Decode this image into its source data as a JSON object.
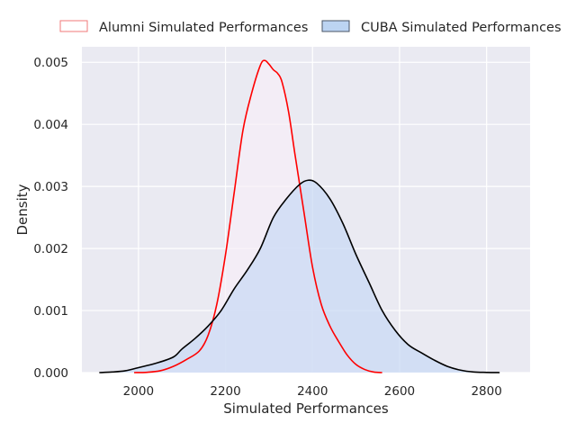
{
  "chart_data": {
    "type": "area",
    "xlabel": "Simulated Performances",
    "ylabel": "Density",
    "xlim": [
      1870,
      2900
    ],
    "ylim": [
      0,
      0.00525
    ],
    "xticks": [
      2000,
      2200,
      2400,
      2600,
      2800
    ],
    "yticks": [
      0.0,
      0.001,
      0.002,
      0.003,
      0.004,
      0.005
    ],
    "xtick_labels": [
      "2000",
      "2200",
      "2400",
      "2600",
      "2800"
    ],
    "ytick_labels": [
      "0.000",
      "0.001",
      "0.002",
      "0.003",
      "0.004",
      "0.005"
    ],
    "grid": true,
    "legend_position": "top-center",
    "series": [
      {
        "name": "Alumni Simulated Performances",
        "line_color": "#ff0000",
        "fill_color": "#f6eef6",
        "legend_edge": "#f07a7a",
        "legend_face": "#ffffff",
        "points": [
          [
            1990,
            0.0
          ],
          [
            2020,
            5e-06
          ],
          [
            2050,
            3e-05
          ],
          [
            2080,
            0.0001
          ],
          [
            2110,
            0.00021
          ],
          [
            2140,
            0.00035
          ],
          [
            2160,
            0.0006
          ],
          [
            2180,
            0.0011
          ],
          [
            2200,
            0.0019
          ],
          [
            2220,
            0.0029
          ],
          [
            2240,
            0.0039
          ],
          [
            2260,
            0.0045
          ],
          [
            2280,
            0.00495
          ],
          [
            2290,
            0.00503
          ],
          [
            2300,
            0.00497
          ],
          [
            2310,
            0.00488
          ],
          [
            2320,
            0.00482
          ],
          [
            2330,
            0.00468
          ],
          [
            2345,
            0.0042
          ],
          [
            2360,
            0.0035
          ],
          [
            2380,
            0.0026
          ],
          [
            2400,
            0.0017
          ],
          [
            2420,
            0.0011
          ],
          [
            2440,
            0.00075
          ],
          [
            2460,
            0.0005
          ],
          [
            2480,
            0.00028
          ],
          [
            2500,
            0.00013
          ],
          [
            2520,
            5e-05
          ],
          [
            2540,
            1e-05
          ],
          [
            2560,
            0.0
          ]
        ]
      },
      {
        "name": "CUBA Simulated Performances",
        "line_color": "#000000",
        "fill_color": "#c9daf4",
        "legend_edge": "#4a5566",
        "legend_face": "#bcd4f2",
        "points": [
          [
            1910,
            0.0
          ],
          [
            1940,
            1e-05
          ],
          [
            1970,
            3e-05
          ],
          [
            2000,
            8e-05
          ],
          [
            2040,
            0.00015
          ],
          [
            2080,
            0.00025
          ],
          [
            2100,
            0.00038
          ],
          [
            2130,
            0.00055
          ],
          [
            2160,
            0.00075
          ],
          [
            2190,
            0.001
          ],
          [
            2220,
            0.00135
          ],
          [
            2250,
            0.00165
          ],
          [
            2280,
            0.002
          ],
          [
            2310,
            0.0025
          ],
          [
            2340,
            0.0028
          ],
          [
            2370,
            0.00303
          ],
          [
            2390,
            0.0031
          ],
          [
            2410,
            0.00305
          ],
          [
            2440,
            0.0028
          ],
          [
            2470,
            0.0024
          ],
          [
            2500,
            0.0019
          ],
          [
            2530,
            0.00145
          ],
          [
            2560,
            0.001
          ],
          [
            2590,
            0.00068
          ],
          [
            2620,
            0.00045
          ],
          [
            2650,
            0.00032
          ],
          [
            2680,
            0.0002
          ],
          [
            2710,
            0.0001
          ],
          [
            2740,
            4e-05
          ],
          [
            2770,
            1e-05
          ],
          [
            2800,
            3e-06
          ],
          [
            2830,
            0.0
          ]
        ]
      }
    ]
  }
}
